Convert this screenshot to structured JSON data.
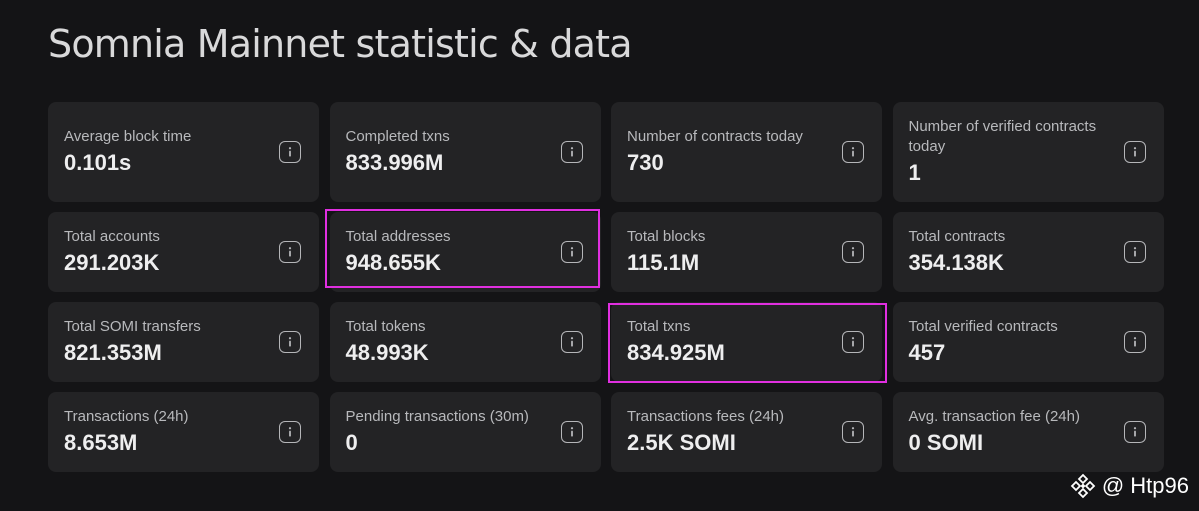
{
  "title": "Somnia Mainnet statistic & data",
  "stats": [
    {
      "label": "Average block time",
      "value": "0.101s"
    },
    {
      "label": "Completed txns",
      "value": "833.996M"
    },
    {
      "label": "Number of contracts today",
      "value": "730"
    },
    {
      "label": "Number of verified contracts today",
      "value": "1"
    },
    {
      "label": "Total accounts",
      "value": "291.203K"
    },
    {
      "label": "Total addresses",
      "value": "948.655K"
    },
    {
      "label": "Total blocks",
      "value": "115.1M"
    },
    {
      "label": "Total contracts",
      "value": "354.138K"
    },
    {
      "label": "Total SOMI transfers",
      "value": "821.353M"
    },
    {
      "label": "Total tokens",
      "value": "48.993K"
    },
    {
      "label": "Total txns",
      "value": "834.925M"
    },
    {
      "label": "Total verified contracts",
      "value": "457"
    },
    {
      "label": "Transactions (24h)",
      "value": "8.653M"
    },
    {
      "label": "Pending transactions (30m)",
      "value": "0"
    },
    {
      "label": "Transactions fees (24h)",
      "value": "2.5K SOMI"
    },
    {
      "label": "Avg. transaction fee (24h)",
      "value": "0 SOMI"
    }
  ],
  "watermark": "@ Htp96",
  "colors": {
    "highlight": "#e02fe0",
    "card": "#232325",
    "background": "#141416"
  }
}
